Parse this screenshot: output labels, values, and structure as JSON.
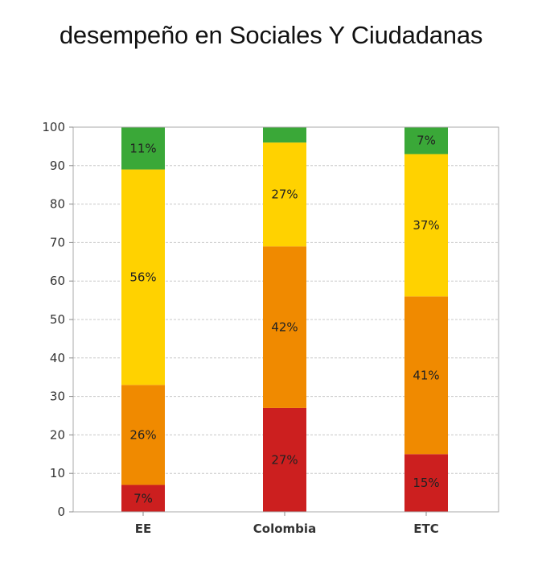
{
  "chart_data": {
    "type": "bar",
    "stacked": true,
    "title": "desempeño en Sociales Y Ciudadanas",
    "categories": [
      "EE",
      "Colombia",
      "ETC"
    ],
    "ylim": [
      0,
      100
    ],
    "yticks": [
      0,
      10,
      20,
      30,
      40,
      50,
      60,
      70,
      80,
      90,
      100
    ],
    "grid": true,
    "series": [
      {
        "color": "#cc1f1f",
        "values": [
          7,
          27,
          15
        ],
        "labels": [
          "7%",
          "27%",
          "15%"
        ]
      },
      {
        "color": "#f08a00",
        "values": [
          26,
          42,
          41
        ],
        "labels": [
          "26%",
          "42%",
          "41%"
        ]
      },
      {
        "color": "#ffd200",
        "values": [
          56,
          27,
          37
        ],
        "labels": [
          "56%",
          "27%",
          "37%"
        ]
      },
      {
        "color": "#3aa838",
        "values": [
          11,
          4,
          7
        ],
        "labels": [
          "11%",
          "",
          "7%"
        ]
      }
    ]
  }
}
